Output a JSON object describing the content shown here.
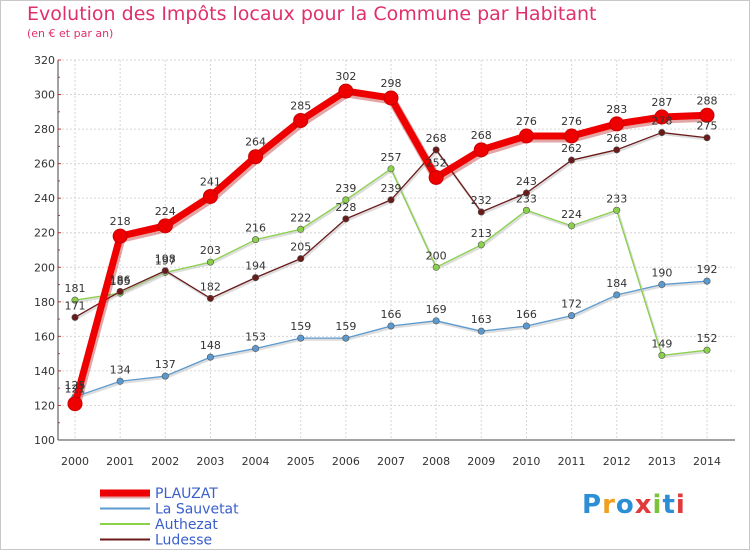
{
  "title": "Evolution des Impôts locaux pour la Commune par Habitant",
  "subtitle": "(en € et par an)",
  "logo": {
    "text": "Proxiti",
    "letters": [
      "P",
      "r",
      "o",
      "x",
      "i",
      "t",
      "i"
    ],
    "colors": [
      "#2c8fd6",
      "#f0a020",
      "#2c8fd6",
      "#e03a3a",
      "#7cc33c",
      "#2c8fd6",
      "#e03a3a"
    ]
  },
  "chart_data": {
    "type": "line",
    "x": [
      2000,
      2001,
      2002,
      2003,
      2004,
      2005,
      2006,
      2007,
      2008,
      2009,
      2010,
      2011,
      2012,
      2013,
      2014
    ],
    "ylim": [
      100,
      320
    ],
    "yticks": [
      100,
      120,
      140,
      160,
      180,
      200,
      220,
      240,
      260,
      280,
      300,
      320
    ],
    "grid": true,
    "legend_position": "bottom-left",
    "series": [
      {
        "name": "PLAUZAT",
        "color": "#ee0000",
        "emphasis": true,
        "values": [
          121,
          218,
          224,
          241,
          264,
          285,
          302,
          298,
          252,
          268,
          276,
          276,
          283,
          287,
          288
        ]
      },
      {
        "name": "La Sauvetat",
        "color": "#5b9ad0",
        "values": [
          125,
          134,
          137,
          148,
          153,
          159,
          159,
          166,
          169,
          163,
          166,
          172,
          184,
          190,
          192
        ]
      },
      {
        "name": "Authezat",
        "color": "#8ad14a",
        "values": [
          181,
          185,
          197,
          203,
          216,
          222,
          239,
          257,
          200,
          213,
          233,
          224,
          233,
          149,
          152
        ]
      },
      {
        "name": "Ludesse",
        "color": "#6b1a1a",
        "values": [
          171,
          186,
          198,
          182,
          194,
          205,
          228,
          239,
          268,
          232,
          243,
          262,
          268,
          278,
          275
        ]
      }
    ]
  }
}
